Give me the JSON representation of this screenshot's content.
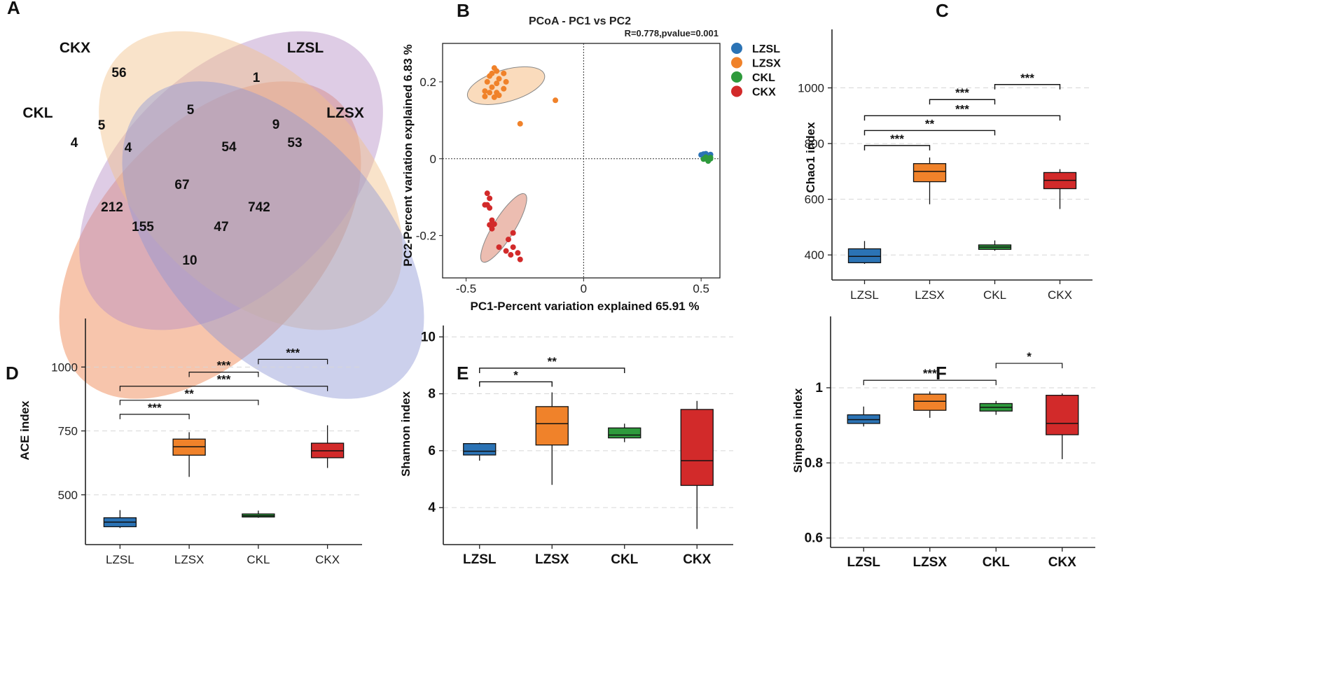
{
  "panels": {
    "A": "A",
    "B": "B",
    "C": "C",
    "D": "D",
    "E": "E",
    "F": "F"
  },
  "venn": {
    "sets": [
      "CKX",
      "LZSL",
      "CKL",
      "LZSX"
    ],
    "colors": {
      "CKX": "#b58ec6",
      "LZSL": "#f1c08a",
      "CKL": "#ef8c5a",
      "LZSX": "#8e97d4"
    },
    "regions": [
      {
        "key": "ckx_only",
        "value": "56"
      },
      {
        "key": "lzsl_only",
        "value": "1"
      },
      {
        "key": "ckx_lzsl",
        "value": "5"
      },
      {
        "key": "ckl_ckx",
        "value": "5"
      },
      {
        "key": "lzsl_lzsx",
        "value": "9"
      },
      {
        "key": "ckl_only",
        "value": "4"
      },
      {
        "key": "ckl_ckx_lzsl",
        "value": "4"
      },
      {
        "key": "ckx_lzsl_lzsx",
        "value": "54"
      },
      {
        "key": "lzsx_only",
        "value": "53"
      },
      {
        "key": "all_four",
        "value": "67"
      },
      {
        "key": "ckl_lzsl",
        "value": "212"
      },
      {
        "key": "ckx_lzsx",
        "value": "742"
      },
      {
        "key": "ckl_lzsl_lzsx",
        "value": "155"
      },
      {
        "key": "ckl_ckx_lzsx",
        "value": "47"
      },
      {
        "key": "ckl_lzsx",
        "value": "10"
      }
    ]
  },
  "chart_data": [
    {
      "panel": "B",
      "type": "scatter",
      "title": "PCoA - PC1 vs PC2",
      "annotation": "R=0.778,pvalue=0.001",
      "xlabel": "PC1-Percent variation explained 65.91 %",
      "ylabel": "PC2-Percent variation explained 6.83 %",
      "xlim": [
        -0.6,
        0.58
      ],
      "ylim": [
        -0.31,
        0.3
      ],
      "xticks": [
        -0.5,
        0,
        0.5
      ],
      "xtick_labels": [
        "-0.5",
        "0",
        "0.5"
      ],
      "yticks": [
        -0.2,
        0,
        0.2
      ],
      "ytick_labels": [
        "-0.2",
        "0",
        "0.2"
      ],
      "series": [
        {
          "name": "LZSL",
          "color": "#2b73b5",
          "points": [
            [
              0.5,
              0.01
            ],
            [
              0.51,
              0.012
            ],
            [
              0.52,
              0.008
            ],
            [
              0.53,
              0.006
            ],
            [
              0.52,
              0.013
            ],
            [
              0.54,
              0.011
            ],
            [
              0.53,
              0.004
            ]
          ]
        },
        {
          "name": "LZSX",
          "color": "#f0822a",
          "points": [
            [
              -0.38,
              0.236
            ],
            [
              -0.37,
              0.228
            ],
            [
              -0.39,
              0.222
            ],
            [
              -0.34,
              0.222
            ],
            [
              -0.4,
              0.215
            ],
            [
              -0.36,
              0.208
            ],
            [
              -0.41,
              0.2
            ],
            [
              -0.37,
              0.196
            ],
            [
              -0.33,
              0.2
            ],
            [
              -0.39,
              0.186
            ],
            [
              -0.34,
              0.182
            ],
            [
              -0.42,
              0.176
            ],
            [
              -0.4,
              0.172
            ],
            [
              -0.37,
              0.172
            ],
            [
              -0.36,
              0.165
            ],
            [
              -0.42,
              0.162
            ],
            [
              -0.38,
              0.16
            ],
            [
              -0.12,
              0.152
            ],
            [
              -0.27,
              0.091
            ]
          ]
        },
        {
          "name": "CKL",
          "color": "#2e9a3c",
          "points": [
            [
              0.52,
              0.0
            ],
            [
              0.53,
              -0.003
            ],
            [
              0.54,
              0.0
            ],
            [
              0.52,
              0.004
            ],
            [
              0.53,
              -0.006
            ],
            [
              0.54,
              0.003
            ],
            [
              0.51,
              -0.001
            ]
          ]
        },
        {
          "name": "CKX",
          "color": "#d22a2a",
          "points": [
            [
              -0.41,
              -0.09
            ],
            [
              -0.4,
              -0.103
            ],
            [
              -0.41,
              -0.12
            ],
            [
              -0.42,
              -0.12
            ],
            [
              -0.4,
              -0.128
            ],
            [
              -0.39,
              -0.16
            ],
            [
              -0.38,
              -0.17
            ],
            [
              -0.4,
              -0.172
            ],
            [
              -0.39,
              -0.182
            ],
            [
              -0.3,
              -0.193
            ],
            [
              -0.32,
              -0.21
            ],
            [
              -0.36,
              -0.23
            ],
            [
              -0.3,
              -0.23
            ],
            [
              -0.33,
              -0.24
            ],
            [
              -0.28,
              -0.245
            ],
            [
              -0.31,
              -0.25
            ],
            [
              -0.27,
              -0.262
            ]
          ]
        }
      ],
      "ellipses": [
        {
          "name": "LZSX",
          "fill": "#f8cfa6",
          "center": [
            -0.33,
            0.19
          ],
          "rx": 0.17,
          "ry": 0.068,
          "angle": -16
        },
        {
          "name": "CKX",
          "fill": "#e6a797",
          "center": [
            -0.34,
            -0.18
          ],
          "rx": 0.17,
          "ry": 0.045,
          "angle": -58
        }
      ],
      "legend": [
        {
          "label": "LZSL",
          "color": "#2b73b5"
        },
        {
          "label": "LZSX",
          "color": "#f0822a"
        },
        {
          "label": "CKL",
          "color": "#2e9a3c"
        },
        {
          "label": "CKX",
          "color": "#d22a2a"
        }
      ]
    },
    {
      "panel": "C",
      "type": "box",
      "ylabel": "Chao1 index",
      "categories": [
        "LZSL",
        "LZSX",
        "CKL",
        "CKX"
      ],
      "colors": [
        "#2b73b5",
        "#f0822a",
        "#2e9a3c",
        "#d22a2a"
      ],
      "ylim": [
        310,
        1210
      ],
      "yticks": [
        400,
        600,
        800,
        1000
      ],
      "boxes": [
        {
          "min": 368,
          "q1": 372,
          "median": 395,
          "q3": 422,
          "max": 450
        },
        {
          "min": 582,
          "q1": 663,
          "median": 700,
          "q3": 728,
          "max": 750
        },
        {
          "min": 415,
          "q1": 420,
          "median": 428,
          "q3": 436,
          "max": 452
        },
        {
          "min": 565,
          "q1": 638,
          "median": 668,
          "q3": 696,
          "max": 708
        }
      ],
      "comparisons": [
        {
          "from": 0,
          "to": 1,
          "y": 793,
          "label": "***"
        },
        {
          "from": 0,
          "to": 2,
          "y": 847,
          "label": "**"
        },
        {
          "from": 0,
          "to": 3,
          "y": 900,
          "label": "***"
        },
        {
          "from": 1,
          "to": 2,
          "y": 958,
          "label": "***"
        },
        {
          "from": 2,
          "to": 3,
          "y": 1012,
          "label": "***"
        }
      ]
    },
    {
      "panel": "D",
      "type": "box",
      "ylabel": "ACE index",
      "categories": [
        "LZSL",
        "LZSX",
        "CKL",
        "CKX"
      ],
      "colors": [
        "#2b73b5",
        "#f0822a",
        "#2e9a3c",
        "#d22a2a"
      ],
      "ylim": [
        305,
        1190
      ],
      "yticks": [
        500,
        750,
        1000
      ],
      "boxes": [
        {
          "min": 370,
          "q1": 375,
          "median": 393,
          "q3": 410,
          "max": 440
        },
        {
          "min": 570,
          "q1": 655,
          "median": 688,
          "q3": 718,
          "max": 745
        },
        {
          "min": 410,
          "q1": 413,
          "median": 418,
          "q3": 425,
          "max": 438
        },
        {
          "min": 605,
          "q1": 645,
          "median": 672,
          "q3": 702,
          "max": 772
        }
      ],
      "comparisons": [
        {
          "from": 0,
          "to": 1,
          "y": 815,
          "label": "***"
        },
        {
          "from": 0,
          "to": 2,
          "y": 870,
          "label": "**"
        },
        {
          "from": 0,
          "to": 3,
          "y": 925,
          "label": "***"
        },
        {
          "from": 1,
          "to": 2,
          "y": 980,
          "label": "***"
        },
        {
          "from": 2,
          "to": 3,
          "y": 1030,
          "label": "***"
        }
      ]
    },
    {
      "panel": "E",
      "type": "box",
      "ylabel": "Shannon index",
      "categories": [
        "LZSL",
        "LZSX",
        "CKL",
        "CKX"
      ],
      "colors": [
        "#2b73b5",
        "#f0822a",
        "#2e9a3c",
        "#d22a2a"
      ],
      "ylim": [
        2.7,
        10.4
      ],
      "yticks": [
        4,
        6,
        8,
        10
      ],
      "boxes": [
        {
          "min": 5.65,
          "q1": 5.85,
          "median": 5.98,
          "q3": 6.25,
          "max": 6.28
        },
        {
          "min": 4.8,
          "q1": 6.2,
          "median": 6.95,
          "q3": 7.55,
          "max": 8.05
        },
        {
          "min": 6.3,
          "q1": 6.45,
          "median": 6.55,
          "q3": 6.8,
          "max": 6.95
        },
        {
          "min": 3.25,
          "q1": 4.78,
          "median": 5.65,
          "q3": 7.45,
          "max": 7.75
        }
      ],
      "comparisons": [
        {
          "from": 0,
          "to": 1,
          "y": 8.42,
          "label": "*"
        },
        {
          "from": 0,
          "to": 2,
          "y": 8.9,
          "label": "**"
        }
      ]
    },
    {
      "panel": "F",
      "type": "box",
      "ylabel": "Simpson index",
      "categories": [
        "LZSL",
        "LZSX",
        "CKL",
        "CKX"
      ],
      "colors": [
        "#2b73b5",
        "#f0822a",
        "#2e9a3c",
        "#d22a2a"
      ],
      "ylim": [
        0.575,
        1.19
      ],
      "yticks": [
        0.6,
        0.8,
        1
      ],
      "ytick_labels": [
        "0.6",
        "0.8",
        "1"
      ],
      "boxes": [
        {
          "min": 0.897,
          "q1": 0.905,
          "median": 0.915,
          "q3": 0.928,
          "max": 0.95
        },
        {
          "min": 0.92,
          "q1": 0.94,
          "median": 0.964,
          "q3": 0.983,
          "max": 0.99
        },
        {
          "min": 0.928,
          "q1": 0.938,
          "median": 0.948,
          "q3": 0.958,
          "max": 0.965
        },
        {
          "min": 0.81,
          "q1": 0.875,
          "median": 0.905,
          "q3": 0.98,
          "max": 0.985
        }
      ],
      "comparisons": [
        {
          "from": 0,
          "to": 2,
          "y": 1.02,
          "label": "***"
        },
        {
          "from": 2,
          "to": 3,
          "y": 1.065,
          "label": "*"
        }
      ]
    }
  ]
}
